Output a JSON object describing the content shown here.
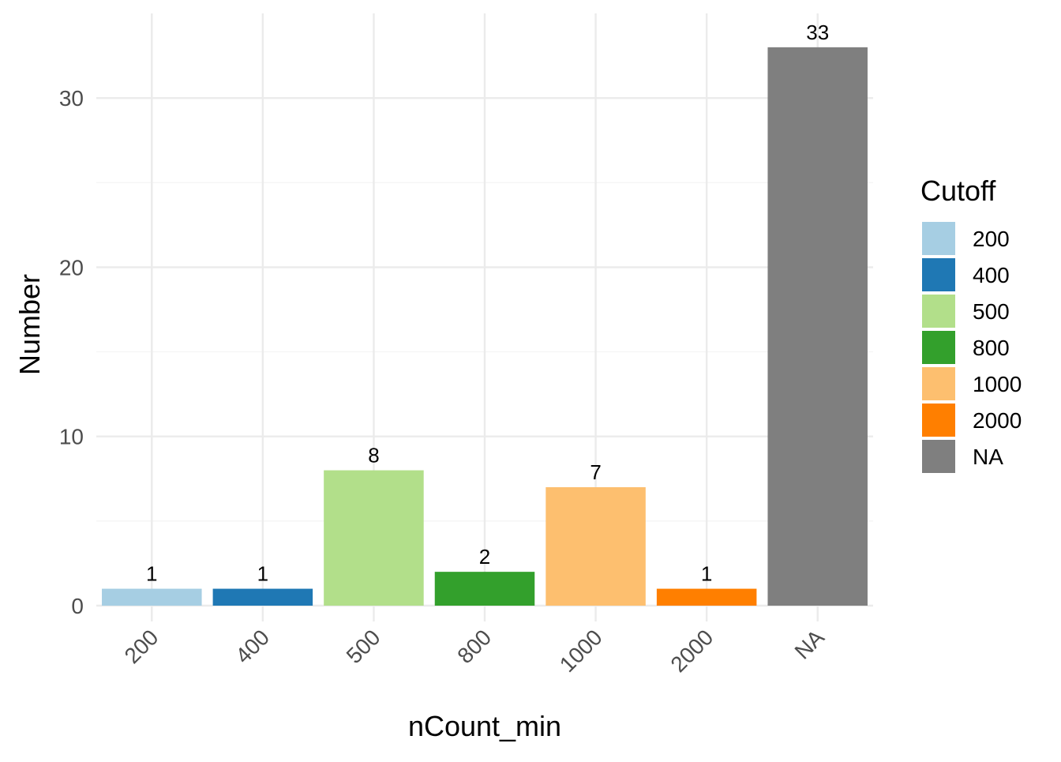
{
  "chart_data": {
    "type": "bar",
    "title": "",
    "xlabel": "nCount_min",
    "ylabel": "Number",
    "categories": [
      "200",
      "400",
      "500",
      "800",
      "1000",
      "2000",
      "NA"
    ],
    "values": [
      1,
      1,
      8,
      2,
      7,
      1,
      33
    ],
    "data_labels": [
      "1",
      "1",
      "8",
      "2",
      "7",
      "1",
      "33"
    ],
    "colors": [
      "#A6CEE3",
      "#1F78B4",
      "#B2DF8A",
      "#33A02C",
      "#FDBF6F",
      "#FF7F00",
      "#7F7F7F"
    ],
    "ylim": [
      0,
      35
    ],
    "yticks": [
      0,
      10,
      20,
      30
    ],
    "ytick_labels": [
      "0",
      "10",
      "20",
      "30"
    ],
    "grid": true,
    "legend": {
      "title": "Cutoff",
      "position": "right",
      "entries": [
        "200",
        "400",
        "500",
        "800",
        "1000",
        "2000",
        "NA"
      ]
    }
  }
}
